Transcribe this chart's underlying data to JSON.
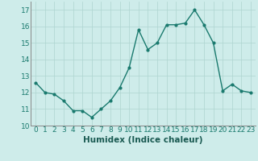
{
  "x": [
    0,
    1,
    2,
    3,
    4,
    5,
    6,
    7,
    8,
    9,
    10,
    11,
    12,
    13,
    14,
    15,
    16,
    17,
    18,
    19,
    20,
    21,
    22,
    23
  ],
  "y": [
    12.6,
    12.0,
    11.9,
    11.5,
    10.9,
    10.9,
    10.5,
    11.0,
    11.5,
    12.3,
    13.5,
    15.8,
    14.6,
    15.0,
    16.1,
    16.1,
    16.2,
    17.0,
    16.1,
    15.0,
    12.1,
    12.5,
    12.1,
    12.0
  ],
  "line_color": "#1a7a6e",
  "marker": "o",
  "marker_size": 2.0,
  "line_width": 1.0,
  "background_color": "#ceecea",
  "grid_color": "#aed4d0",
  "xlabel": "Humidex (Indice chaleur)",
  "xlabel_fontsize": 7.5,
  "tick_fontsize": 6.5,
  "ylim": [
    10,
    17.5
  ],
  "xlim": [
    -0.5,
    23.5
  ],
  "yticks": [
    10,
    11,
    12,
    13,
    14,
    15,
    16,
    17
  ],
  "xticks": [
    0,
    1,
    2,
    3,
    4,
    5,
    6,
    7,
    8,
    9,
    10,
    11,
    12,
    13,
    14,
    15,
    16,
    17,
    18,
    19,
    20,
    21,
    22,
    23
  ]
}
